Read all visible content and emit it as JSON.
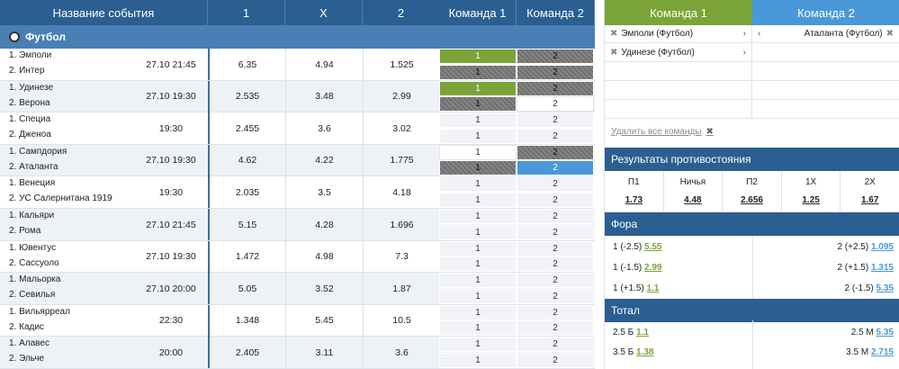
{
  "table": {
    "headers": {
      "event": "Название события",
      "one": "1",
      "x": "X",
      "two": "2",
      "team1": "Команда 1",
      "team2": "Команда 2"
    },
    "sport": "Футбол",
    "rows": [
      {
        "t1": "1. Эмполи",
        "t2": "2. Интер",
        "time": "27.10 21:45",
        "o1": "6.35",
        "ox": "4.94",
        "o2": "1.525",
        "c1a": "1",
        "c2a": "2",
        "c1b": "1",
        "c2b": "2",
        "s": [
          "green",
          "gray",
          "gray",
          "gray"
        ]
      },
      {
        "t1": "1. Удинезе",
        "t2": "2. Верона",
        "time": "27.10 19:30",
        "o1": "2.535",
        "ox": "3.48",
        "o2": "2.99",
        "c1a": "1",
        "c2a": "2",
        "c1b": "1",
        "c2b": "2",
        "s": [
          "green",
          "gray",
          "gray",
          "white"
        ]
      },
      {
        "t1": "1. Специа",
        "t2": "2. Дженоа",
        "time": "19:30",
        "o1": "2.455",
        "ox": "3.6",
        "o2": "3.02",
        "c1a": "1",
        "c2a": "2",
        "c1b": "1",
        "c2b": "2",
        "s": [
          "",
          "",
          "",
          ""
        ]
      },
      {
        "t1": "1. Сампдория",
        "t2": "2. Аталанта",
        "time": "27.10 19:30",
        "o1": "4.62",
        "ox": "4.22",
        "o2": "1.775",
        "c1a": "1",
        "c2a": "2",
        "c1b": "1",
        "c2b": "2",
        "s": [
          "white",
          "gray",
          "gray",
          "blue"
        ]
      },
      {
        "t1": "1. Венеция",
        "t2": "2. УС Салернитана 1919",
        "time": "19:30",
        "o1": "2.035",
        "ox": "3.5",
        "o2": "4.18",
        "c1a": "1",
        "c2a": "2",
        "c1b": "1",
        "c2b": "2",
        "s": [
          "",
          "",
          "",
          ""
        ]
      },
      {
        "t1": "1. Кальяри",
        "t2": "2. Рома",
        "time": "27.10 21:45",
        "o1": "5.15",
        "ox": "4.28",
        "o2": "1.696",
        "c1a": "1",
        "c2a": "2",
        "c1b": "1",
        "c2b": "2",
        "s": [
          "",
          "",
          "",
          ""
        ]
      },
      {
        "t1": "1. Ювентус",
        "t2": "2. Сассуоло",
        "time": "27.10 19:30",
        "o1": "1.472",
        "ox": "4.98",
        "o2": "7.3",
        "c1a": "1",
        "c2a": "2",
        "c1b": "1",
        "c2b": "2",
        "s": [
          "",
          "",
          "",
          ""
        ]
      },
      {
        "t1": "1. Мальорка",
        "t2": "2. Севилья",
        "time": "27.10 20:00",
        "o1": "5.05",
        "ox": "3.52",
        "o2": "1.87",
        "c1a": "1",
        "c2a": "2",
        "c1b": "1",
        "c2b": "2",
        "s": [
          "",
          "",
          "",
          ""
        ]
      },
      {
        "t1": "1. Вильярреал",
        "t2": "2. Кадис",
        "time": "22:30",
        "o1": "1.348",
        "ox": "5.45",
        "o2": "10.5",
        "c1a": "1",
        "c2a": "2",
        "c1b": "1",
        "c2b": "2",
        "s": [
          "",
          "",
          "",
          ""
        ]
      },
      {
        "t1": "1. Алавес",
        "t2": "2. Эльче",
        "time": "20:00",
        "o1": "2.405",
        "ox": "3.11",
        "o2": "3.6",
        "c1a": "1",
        "c2a": "2",
        "c1b": "1",
        "c2b": "2",
        "s": [
          "",
          "",
          "",
          ""
        ]
      }
    ]
  },
  "panel": {
    "team1_header": "Команда 1",
    "team2_header": "Команда 2",
    "team1_items": [
      "Эмполи (Футбол)",
      "Удинезе (Футбол)"
    ],
    "team2_items": [
      "Аталанта (Футбол)"
    ],
    "remove_all": "Удалить все команды",
    "results_title": "Результаты противостояния",
    "results": [
      {
        "label": "П1",
        "value": "1.73"
      },
      {
        "label": "Ничья",
        "value": "4.48"
      },
      {
        "label": "П2",
        "value": "2.656"
      },
      {
        "label": "1X",
        "value": "1.25"
      },
      {
        "label": "2X",
        "value": "1.67"
      }
    ],
    "fora_title": "Фора",
    "fora": [
      {
        "left": "1 (-2.5)",
        "lv": "5.55",
        "right": "2 (+2.5)",
        "rv": "1.095"
      },
      {
        "left": "1 (-1.5)",
        "lv": "2.99",
        "right": "2 (+1.5)",
        "rv": "1.315"
      },
      {
        "left": "1 (+1.5)",
        "lv": "1.1",
        "right": "2 (-1.5)",
        "rv": "5.35"
      }
    ],
    "total_title": "Тотал",
    "total": [
      {
        "left": "2.5 Б",
        "lv": "1.1",
        "right": "2.5 М",
        "rv": "5.35"
      },
      {
        "left": "3.5 Б",
        "lv": "1.38",
        "right": "3.5 М",
        "rv": "2.715"
      }
    ]
  },
  "icons": {
    "sport": "soccer-ball-icon",
    "remove": "close-icon",
    "arrow_right": "chevron-right-icon",
    "arrow_left": "chevron-left-icon"
  }
}
